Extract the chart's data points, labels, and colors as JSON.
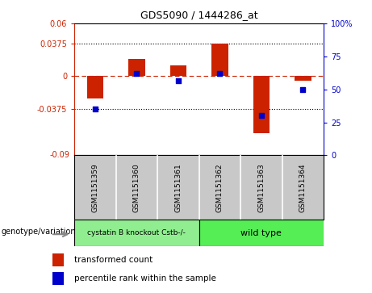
{
  "title": "GDS5090 / 1444286_at",
  "samples": [
    "GSM1151359",
    "GSM1151360",
    "GSM1151361",
    "GSM1151362",
    "GSM1151363",
    "GSM1151364"
  ],
  "red_bars": [
    -0.025,
    0.02,
    0.012,
    0.037,
    -0.065,
    -0.005
  ],
  "blue_dots_left": [
    -0.0375,
    0.003,
    -0.005,
    0.003,
    -0.045,
    -0.015
  ],
  "ylim_left": [
    -0.09,
    0.06
  ],
  "ylim_right": [
    0,
    100
  ],
  "yticks_left": [
    -0.0375,
    0,
    0.0375,
    0.06
  ],
  "ytick_labels_left": [
    "-0.0375",
    "0",
    "0.0375",
    "0.06"
  ],
  "ytick_labels_left_bottom": "-0.09",
  "yticks_right": [
    0,
    25,
    50,
    75,
    100
  ],
  "ytick_labels_right": [
    "0",
    "25",
    "50",
    "75",
    "100%"
  ],
  "hlines": [
    -0.0375,
    0.0375
  ],
  "genotype_groups": [
    {
      "label": "cystatin B knockout Cstb-/-",
      "color": "#90EE90",
      "count": 3
    },
    {
      "label": "wild type",
      "color": "#55EE55",
      "count": 3
    }
  ],
  "genotype_label": "genotype/variation",
  "legend_items": [
    {
      "color": "#CC2200",
      "label": "transformed count"
    },
    {
      "color": "#0000CC",
      "label": "percentile rank within the sample"
    }
  ],
  "bar_color": "#CC2200",
  "dot_color": "#0000CC",
  "bar_width": 0.4,
  "dot_size": 25,
  "sample_bg": "#C8C8C8"
}
